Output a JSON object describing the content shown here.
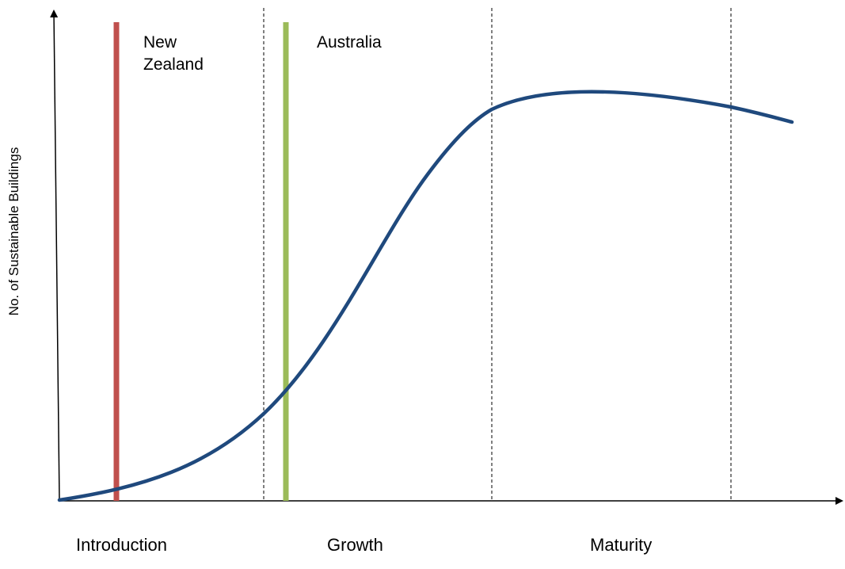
{
  "diagram": {
    "y_axis_label": "No. of Sustainable Buildings",
    "stages": [
      {
        "label": "Introduction"
      },
      {
        "label": "Growth"
      },
      {
        "label": "Maturity"
      }
    ],
    "markers": [
      {
        "label_lines": [
          "New",
          "Zealand"
        ],
        "color": "#c0504d"
      },
      {
        "label_lines": [
          "Australia"
        ],
        "color": "#9bbb59"
      }
    ],
    "curve_color": "#1f497d",
    "axis_color": "#000000",
    "divider_style": "dashed"
  }
}
